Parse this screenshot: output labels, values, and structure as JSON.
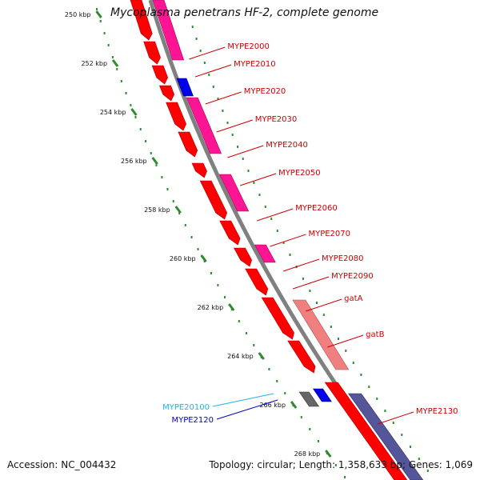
{
  "title": "Mycoplasma penetrans HF-2, complete genome",
  "footer": {
    "accession": "Accession: NC_004432",
    "summary": "Topology: circular; Length: 1,358,633 bp; Genes: 1,069"
  },
  "colors": {
    "backbone": "#808080",
    "cds_forward": "#ff0000",
    "cds_reverse": "#ff1493",
    "rna": "#0000ee",
    "tick": "#2e8b2e",
    "label_default": "#cc0000",
    "label_cyan": "#1fb5e8",
    "label_blue": "#0000cc",
    "gat_operon": "#f08080",
    "reverse_strand_feature": "#555599",
    "grey_feature": "#666666"
  },
  "ticks": [
    "250 kbp",
    "252 kbp",
    "254 kbp",
    "256 kbp",
    "258 kbp",
    "260 kbp",
    "262 kbp",
    "264 kbp",
    "266 kbp",
    "268 kbp"
  ],
  "gene_labels": [
    {
      "text": "MYPE2000",
      "color": "label_default"
    },
    {
      "text": "MYPE2010",
      "color": "label_default"
    },
    {
      "text": "MYPE2020",
      "color": "label_default"
    },
    {
      "text": "MYPE2030",
      "color": "label_default"
    },
    {
      "text": "MYPE2040",
      "color": "label_default"
    },
    {
      "text": "MYPE2050",
      "color": "label_default"
    },
    {
      "text": "MYPE2060",
      "color": "label_default"
    },
    {
      "text": "MYPE2070",
      "color": "label_default"
    },
    {
      "text": "MYPE2080",
      "color": "label_default"
    },
    {
      "text": "MYPE2090",
      "color": "label_default"
    },
    {
      "text": "gatA",
      "color": "label_default"
    },
    {
      "text": "gatB",
      "color": "label_default"
    },
    {
      "text": "MYPE2130",
      "color": "label_default"
    },
    {
      "text": "MYPE20100",
      "color": "label_cyan"
    },
    {
      "text": "MYPE2120",
      "color": "label_blue"
    }
  ]
}
